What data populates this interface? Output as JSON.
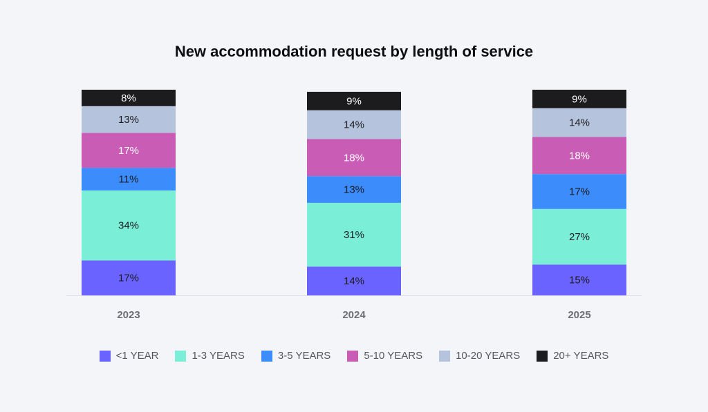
{
  "chart_data": {
    "type": "bar",
    "stacked": true,
    "title": "New accommodation request by length of service",
    "categories": [
      "2023",
      "2024",
      "2025"
    ],
    "value_format": "percent",
    "series": [
      {
        "name": "<1 YEAR",
        "color": "#6a63ff",
        "label_color": "#1b1b22",
        "values": [
          17,
          14,
          15
        ]
      },
      {
        "name": "1-3 YEARS",
        "color": "#7aeed6",
        "label_color": "#1b1b22",
        "values": [
          34,
          31,
          27
        ]
      },
      {
        "name": "3-5 YEARS",
        "color": "#3d8cfb",
        "label_color": "#1b1b22",
        "values": [
          11,
          13,
          17
        ]
      },
      {
        "name": "5-10 YEARS",
        "color": "#c95cb5",
        "label_color": "#ffffff",
        "values": [
          17,
          18,
          18
        ]
      },
      {
        "name": "10-20 YEARS",
        "color": "#b5c3dc",
        "label_color": "#1b1b22",
        "values": [
          13,
          14,
          14
        ]
      },
      {
        "name": "20+ YEARS",
        "color": "#1c1c1e",
        "label_color": "#ffffff",
        "values": [
          8,
          9,
          9
        ]
      }
    ],
    "ylim": [
      0,
      100
    ],
    "grid": false,
    "legend_position": "bottom"
  }
}
